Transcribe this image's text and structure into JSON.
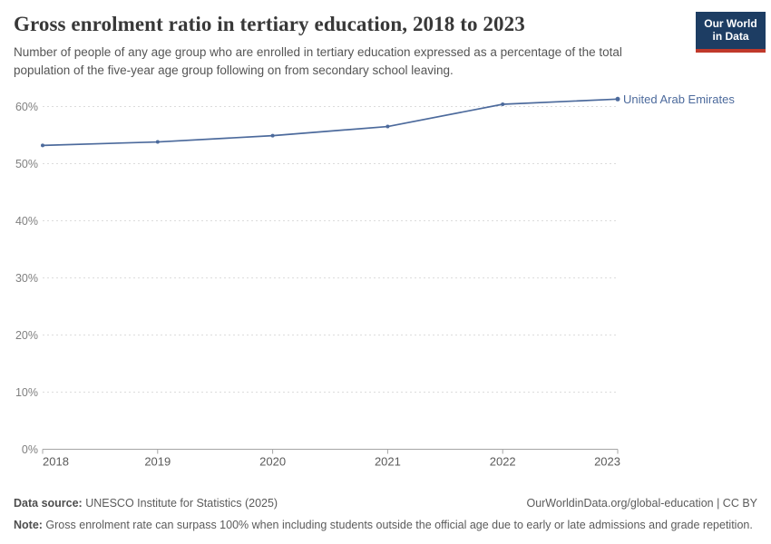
{
  "header": {
    "title": "Gross enrolment ratio in tertiary education, 2018 to 2023",
    "subtitle": "Number of people of any age group who are enrolled in tertiary education expressed as a percentage of the total population of the five-year age group following on from secondary school leaving."
  },
  "logo": {
    "line1": "Our World",
    "line2": "in Data",
    "bg_color": "#1d3d63",
    "accent_color": "#c0392b"
  },
  "chart_data": {
    "type": "line",
    "title": "Gross enrolment ratio in tertiary education, 2018 to 2023",
    "x": [
      2018,
      2019,
      2020,
      2021,
      2022,
      2023
    ],
    "series": [
      {
        "name": "United Arab Emirates",
        "values": [
          53.2,
          53.8,
          54.9,
          56.5,
          60.4,
          61.3
        ],
        "color": "#4C6A9C"
      }
    ],
    "xlabel": "",
    "ylabel": "",
    "ylim": [
      0,
      65
    ],
    "yticks": [
      0,
      10,
      20,
      30,
      40,
      50,
      60
    ],
    "ytick_format": "{v}%",
    "grid": "horizontal-dashed",
    "gridline_color": "#dcdcdc",
    "axis_color": "#a5a5a5",
    "legend_position": "end-of-line-label"
  },
  "footer": {
    "datasource_label": "Data source:",
    "datasource_text": " UNESCO Institute for Statistics (2025)",
    "link": "OurWorldinData.org/global-education | CC BY",
    "note_label": "Note:",
    "note_text": " Gross enrolment rate can surpass 100% when including students outside the official age due to early or late admissions and grade repetition."
  }
}
